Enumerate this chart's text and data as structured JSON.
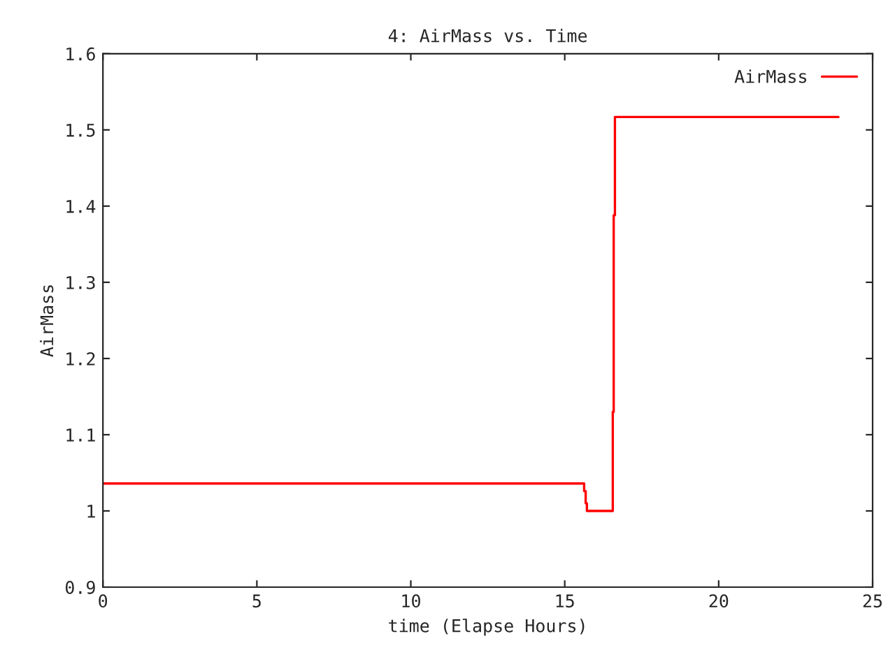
{
  "chart_data": {
    "type": "step",
    "title": "4: AirMass vs. Time",
    "xlabel": "time (Elapse Hours)",
    "ylabel": "AirMass",
    "series": [
      {
        "name": "AirMass",
        "color": "#ff0000",
        "x": [
          0,
          15.63,
          15.68,
          15.72,
          16.56,
          16.59,
          16.63,
          23.89
        ],
        "values": [
          1.036,
          1.026,
          1.01,
          1.0,
          1.13,
          1.388,
          1.517,
          1.517
        ]
      }
    ],
    "xlim": [
      0,
      25
    ],
    "xticks": [
      0,
      5,
      10,
      15,
      20,
      25
    ],
    "ylim": [
      0.9,
      1.6
    ],
    "yticks": [
      0.9,
      1,
      1.1,
      1.2,
      1.3,
      1.4,
      1.5,
      1.6
    ],
    "grid": false,
    "legend": "top right"
  }
}
